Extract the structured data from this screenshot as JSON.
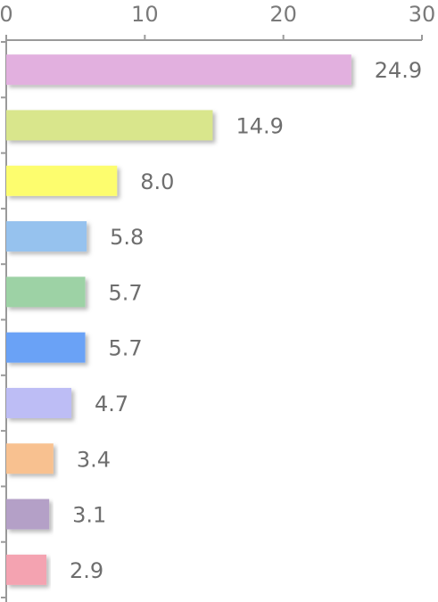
{
  "chart_data": {
    "type": "bar",
    "orientation": "horizontal",
    "xlim": [
      0,
      30
    ],
    "ticks": [
      0,
      10,
      20,
      30
    ],
    "tick_labels": [
      "0",
      "10",
      "20",
      "30"
    ],
    "axis_position": "top",
    "grid": false,
    "legend": "none",
    "values": [
      24.9,
      14.9,
      8.0,
      5.8,
      5.7,
      5.7,
      4.7,
      3.4,
      3.1,
      2.9
    ],
    "value_labels": [
      "24.9",
      "14.9",
      "8.0",
      "5.8",
      "5.7",
      "5.7",
      "4.7",
      "3.4",
      "3.1",
      "2.9"
    ],
    "colors": [
      "#e2b0df",
      "#d9e68c",
      "#fdfd6e",
      "#96c2ee",
      "#9dd2a5",
      "#6aa2f6",
      "#bdbdf5",
      "#f8c190",
      "#b4a0c7",
      "#f4a3b1"
    ]
  }
}
